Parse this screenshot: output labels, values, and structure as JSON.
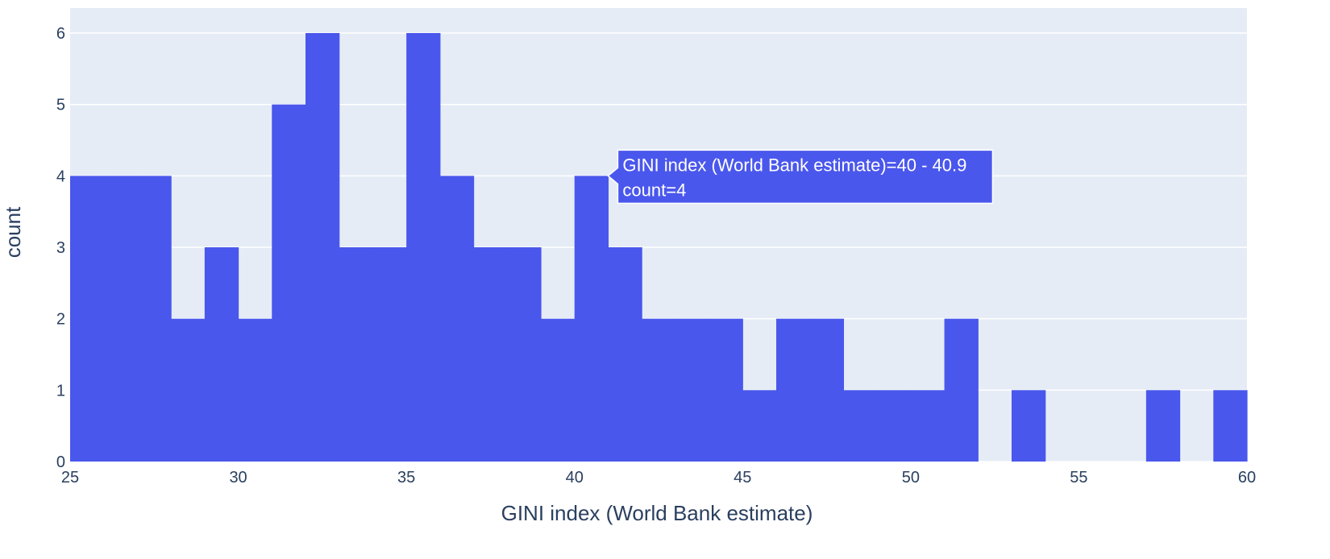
{
  "chart_data": {
    "type": "bar",
    "xlabel": "GINI index (World Bank estimate)",
    "ylabel": "count",
    "xlim": [
      25,
      60
    ],
    "ylim": [
      0,
      6
    ],
    "x_ticks": [
      25,
      30,
      35,
      40,
      45,
      50,
      55,
      60
    ],
    "y_ticks": [
      0,
      1,
      2,
      3,
      4,
      5,
      6
    ],
    "bin_width": 1,
    "bins": [
      {
        "x0": 25,
        "x1": 26,
        "count": 4
      },
      {
        "x0": 26,
        "x1": 27,
        "count": 4
      },
      {
        "x0": 27,
        "x1": 28,
        "count": 4
      },
      {
        "x0": 28,
        "x1": 29,
        "count": 2
      },
      {
        "x0": 29,
        "x1": 30,
        "count": 3
      },
      {
        "x0": 30,
        "x1": 31,
        "count": 2
      },
      {
        "x0": 31,
        "x1": 32,
        "count": 5
      },
      {
        "x0": 32,
        "x1": 33,
        "count": 6
      },
      {
        "x0": 33,
        "x1": 34,
        "count": 3
      },
      {
        "x0": 34,
        "x1": 35,
        "count": 3
      },
      {
        "x0": 35,
        "x1": 36,
        "count": 6
      },
      {
        "x0": 36,
        "x1": 37,
        "count": 4
      },
      {
        "x0": 37,
        "x1": 38,
        "count": 3
      },
      {
        "x0": 38,
        "x1": 39,
        "count": 3
      },
      {
        "x0": 39,
        "x1": 40,
        "count": 2
      },
      {
        "x0": 40,
        "x1": 41,
        "count": 4
      },
      {
        "x0": 41,
        "x1": 42,
        "count": 3
      },
      {
        "x0": 42,
        "x1": 43,
        "count": 2
      },
      {
        "x0": 43,
        "x1": 44,
        "count": 2
      },
      {
        "x0": 44,
        "x1": 45,
        "count": 2
      },
      {
        "x0": 45,
        "x1": 46,
        "count": 1
      },
      {
        "x0": 46,
        "x1": 47,
        "count": 2
      },
      {
        "x0": 47,
        "x1": 48,
        "count": 2
      },
      {
        "x0": 48,
        "x1": 49,
        "count": 1
      },
      {
        "x0": 49,
        "x1": 50,
        "count": 1
      },
      {
        "x0": 50,
        "x1": 51,
        "count": 1
      },
      {
        "x0": 51,
        "x1": 52,
        "count": 2
      },
      {
        "x0": 53,
        "x1": 54,
        "count": 1
      },
      {
        "x0": 57,
        "x1": 58,
        "count": 1
      },
      {
        "x0": 59,
        "x1": 60,
        "count": 1
      }
    ],
    "bar_color": "#4a57ec",
    "plot_bg": "#e5ecf6",
    "grid": true,
    "hover": {
      "bin_x0": 40,
      "bin_x1": 41,
      "line1": "GINI index (World Bank estimate)=40 - 40.9",
      "line2": "count=4"
    }
  }
}
